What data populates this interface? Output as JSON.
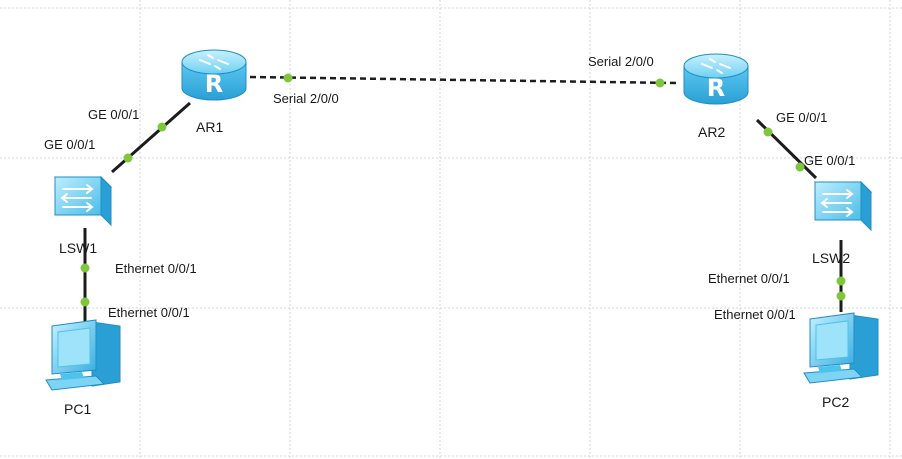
{
  "colors": {
    "background": "#ffffff",
    "grid": "#d4d4d4",
    "link": "#1c1c1c",
    "port_dot": "#7ec63c",
    "device_light": "#9fe3fb",
    "device_mid": "#4cc3ee",
    "device_dark": "#1f8fc4"
  },
  "devices": {
    "ar1": {
      "name": "AR1",
      "icon": "router-icon"
    },
    "ar2": {
      "name": "AR2",
      "icon": "router-icon"
    },
    "lsw1": {
      "name": "LSW1",
      "icon": "switch-icon"
    },
    "lsw2": {
      "name": "LSW2",
      "icon": "switch-icon"
    },
    "pc1": {
      "name": "PC1",
      "icon": "pc-icon"
    },
    "pc2": {
      "name": "PC2",
      "icon": "pc-icon"
    }
  },
  "router_glyph": "R",
  "links": {
    "ar1_lsw1": {
      "ar1_port": "GE 0/0/1",
      "lsw1_port": "GE 0/0/1"
    },
    "ar1_ar2": {
      "ar1_port": "Serial 2/0/0",
      "ar2_port": "Serial 2/0/0",
      "style": "dashed"
    },
    "ar2_lsw2": {
      "ar2_port": "GE 0/0/1",
      "lsw2_port": "GE 0/0/1"
    },
    "lsw1_pc1": {
      "lsw1_port": "Ethernet 0/0/1",
      "pc1_port": "Ethernet 0/0/1"
    },
    "lsw2_pc2": {
      "lsw2_port": "Ethernet 0/0/1",
      "pc2_port": "Ethernet 0/0/1"
    }
  }
}
